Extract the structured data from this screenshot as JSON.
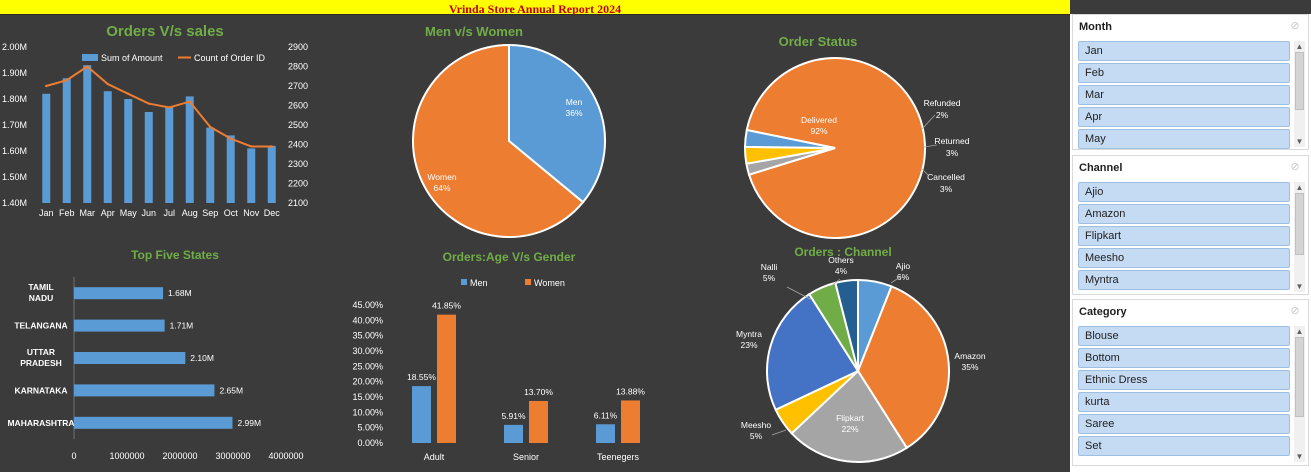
{
  "report_title": "Vrinda Store Annual Report 2024",
  "chart_data": [
    {
      "id": "orders_vs_sales",
      "type": "bar",
      "title": "Orders V/s sales",
      "categories": [
        "Jan",
        "Feb",
        "Mar",
        "Apr",
        "May",
        "Jun",
        "Jul",
        "Aug",
        "Sep",
        "Oct",
        "Nov",
        "Dec"
      ],
      "series": [
        {
          "name": "Sum of Amount",
          "type": "bar",
          "axis": "left",
          "color": "#5b9bd5",
          "values": [
            1.82,
            1.88,
            1.93,
            1.83,
            1.8,
            1.75,
            1.77,
            1.81,
            1.69,
            1.66,
            1.61,
            1.62
          ]
        },
        {
          "name": "Count of Order ID",
          "type": "line",
          "axis": "right",
          "color": "#ed7d31",
          "values": [
            2700,
            2730,
            2800,
            2710,
            2660,
            2610,
            2590,
            2620,
            2490,
            2430,
            2390,
            2390
          ]
        }
      ],
      "yticks_left": [
        "2.00M",
        "1.90M",
        "1.80M",
        "1.70M",
        "1.60M",
        "1.50M",
        "1.40M"
      ],
      "ylim_left": [
        1.4,
        2.0
      ],
      "yticks_right": [
        "2900",
        "2800",
        "2700",
        "2600",
        "2500",
        "2400",
        "2300",
        "2200",
        "2100"
      ],
      "ylim_right": [
        2100,
        2900
      ],
      "legend": "top"
    },
    {
      "id": "men_vs_women",
      "type": "pie",
      "title": "Men v/s Women",
      "slices": [
        {
          "label": "Men",
          "value": 36,
          "display": "36%",
          "color": "#5b9bd5"
        },
        {
          "label": "Women",
          "value": 64,
          "display": "64%",
          "color": "#ed7d31"
        }
      ]
    },
    {
      "id": "order_status",
      "type": "pie",
      "title": "Order Status",
      "slices": [
        {
          "label": "Delivered",
          "value": 92,
          "display": "92%",
          "color": "#ed7d31"
        },
        {
          "label": "Refunded",
          "value": 2,
          "display": "2%",
          "color": "#a5a5a5"
        },
        {
          "label": "Returned",
          "value": 3,
          "display": "3%",
          "color": "#ffc000"
        },
        {
          "label": "Cancelled",
          "value": 3,
          "display": "3%",
          "color": "#5b9bd5"
        }
      ]
    },
    {
      "id": "top_five_states",
      "type": "bar",
      "orientation": "horizontal",
      "title": "Top Five States",
      "categories": [
        "TAMIL NADU",
        "TELANGANA",
        "UTTAR PRADESH",
        "KARNATAKA",
        "MAHARASHTRA"
      ],
      "values": [
        1680000,
        1710000,
        2100000,
        2650000,
        2990000
      ],
      "value_labels": [
        "1.68M",
        "1.71M",
        "2.10M",
        "2.65M",
        "2.99M"
      ],
      "xticks": [
        "0",
        "1000000",
        "2000000",
        "3000000",
        "4000000"
      ],
      "xlim": [
        0,
        4000000
      ],
      "color": "#5b9bd5"
    },
    {
      "id": "age_vs_gender",
      "type": "bar",
      "title": "Orders:Age V/s Gender",
      "categories": [
        "Adult",
        "Senior",
        "Teenegers"
      ],
      "series": [
        {
          "name": "Men",
          "color": "#5b9bd5",
          "values": [
            18.55,
            5.91,
            6.11
          ],
          "labels": [
            "18.55%",
            "5.91%",
            "6.11%"
          ]
        },
        {
          "name": "Women",
          "color": "#ed7d31",
          "values": [
            41.85,
            13.7,
            13.88
          ],
          "labels": [
            "41.85%",
            "13.70%",
            "13.88%"
          ]
        }
      ],
      "yticks": [
        "45.00%",
        "40.00%",
        "35.00%",
        "30.00%",
        "25.00%",
        "20.00%",
        "15.00%",
        "10.00%",
        "5.00%",
        "0.00%"
      ],
      "ylim": [
        0,
        45
      ],
      "legend": "top"
    },
    {
      "id": "orders_channel",
      "type": "pie",
      "title": "Orders : Channel",
      "slices": [
        {
          "label": "Ajio",
          "value": 6,
          "display": "6%",
          "color": "#5b9bd5"
        },
        {
          "label": "Amazon",
          "value": 35,
          "display": "35%",
          "color": "#ed7d31"
        },
        {
          "label": "Flipkart",
          "value": 22,
          "display": "22%",
          "color": "#a5a5a5"
        },
        {
          "label": "Meesho",
          "value": 5,
          "display": "5%",
          "color": "#ffc000"
        },
        {
          "label": "Myntra",
          "value": 23,
          "display": "23%",
          "color": "#4472c4"
        },
        {
          "label": "Nalli",
          "value": 5,
          "display": "5%",
          "color": "#70ad47"
        },
        {
          "label": "Others",
          "value": 4,
          "display": "4%",
          "color": "#255e91"
        }
      ]
    }
  ],
  "slicers": [
    {
      "title": "Month",
      "items": [
        "Jan",
        "Feb",
        "Mar",
        "Apr",
        "May"
      ]
    },
    {
      "title": "Channel",
      "items": [
        "Ajio",
        "Amazon",
        "Flipkart",
        "Meesho",
        "Myntra"
      ]
    },
    {
      "title": "Category",
      "items": [
        "Blouse",
        "Bottom",
        "Ethnic Dress",
        "kurta",
        "Saree",
        "Set"
      ]
    }
  ],
  "icons": {
    "clear_filter": "clear-filter-icon",
    "scroll_up": "scroll-up-icon",
    "scroll_down": "scroll-down-icon"
  }
}
